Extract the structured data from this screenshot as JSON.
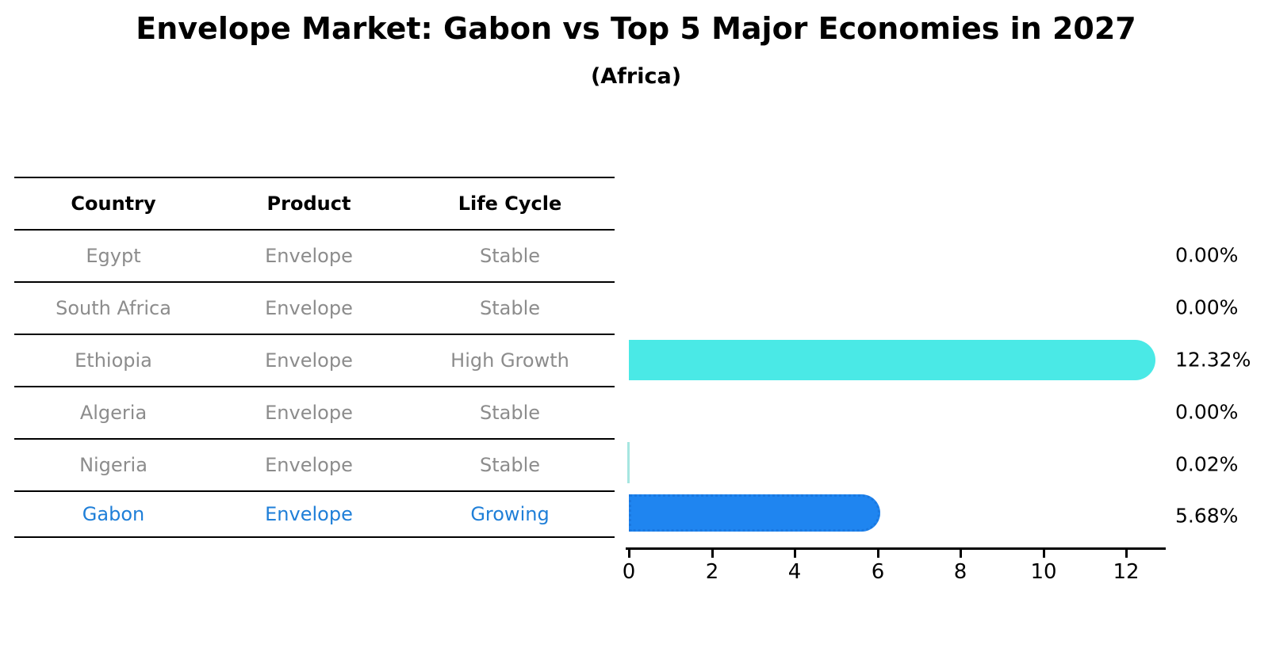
{
  "title": "Envelope Market: Gabon vs Top 5 Major Economies in 2027",
  "subtitle": "(Africa)",
  "table": {
    "headers": [
      "Country",
      "Product",
      "Life Cycle"
    ],
    "rows": [
      {
        "country": "Egypt",
        "product": "Envelope",
        "life_cycle": "Stable"
      },
      {
        "country": "South Africa",
        "product": "Envelope",
        "life_cycle": "Stable"
      },
      {
        "country": "Ethiopia",
        "product": "Envelope",
        "life_cycle": "High Growth"
      },
      {
        "country": "Algeria",
        "product": "Envelope",
        "life_cycle": "Stable"
      },
      {
        "country": "Nigeria",
        "product": "Envelope",
        "life_cycle": "Stable"
      },
      {
        "country": "Gabon",
        "product": "Envelope",
        "life_cycle": "Growing"
      }
    ]
  },
  "chart_data": {
    "type": "bar",
    "orientation": "horizontal",
    "title": "Envelope Market: Gabon vs Top 5 Major Economies in 2027",
    "subtitle": "(Africa)",
    "categories": [
      "Egypt",
      "South Africa",
      "Ethiopia",
      "Algeria",
      "Nigeria",
      "Gabon"
    ],
    "values": [
      0.0,
      0.0,
      12.32,
      0.0,
      0.02,
      5.68
    ],
    "value_labels": [
      "0.00%",
      "0.00%",
      "12.32%",
      "0.00%",
      "0.02%",
      "5.68%"
    ],
    "xticks": [
      0,
      2,
      4,
      6,
      8,
      10,
      12
    ],
    "xticklabels": [
      "0",
      "2",
      "4",
      "6",
      "8",
      "10",
      "12"
    ],
    "xlim": [
      0,
      13
    ],
    "grid": false,
    "legend": "none",
    "colors": {
      "default_bar": "#4ae9e6",
      "tiny_bar": "#a6e6e0",
      "highlight_bar": "#1f85f0",
      "highlight_bar_border": "#1a78e0",
      "highlight_row_text": "#1f7fd8",
      "table_row_text": "#8c8c8c",
      "header_text": "#000000",
      "axis_color": "#000000"
    }
  }
}
